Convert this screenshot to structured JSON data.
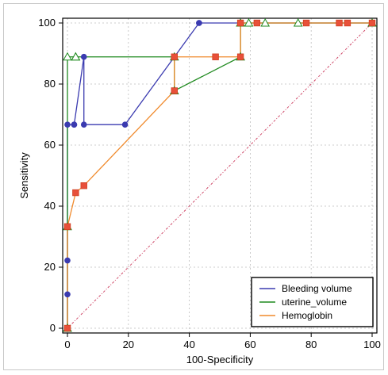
{
  "chart_data": {
    "type": "line",
    "xlabel": "100-Specificity",
    "ylabel": "Sensitivity",
    "xlim": [
      0,
      100
    ],
    "ylim": [
      0,
      100
    ],
    "xticks": [
      0,
      20,
      40,
      60,
      80,
      100
    ],
    "yticks": [
      0,
      20,
      40,
      60,
      80,
      100
    ],
    "grid": true,
    "legend_position": "bottom-right",
    "diagonal_reference": true,
    "series": [
      {
        "name": "Bleeding volume",
        "color": "#3b3bb0",
        "marker_color": "#3b3bb0",
        "x": [
          0,
          0,
          0,
          0,
          0,
          2.2,
          2.2,
          5.4,
          5.4,
          18.9,
          35.1,
          35.1,
          43.2,
          43.2,
          100
        ],
        "y": [
          0,
          11.1,
          22.2,
          33.3,
          66.7,
          66.7,
          66.7,
          88.9,
          66.7,
          66.7,
          88.9,
          88.9,
          100,
          100,
          100
        ]
      },
      {
        "name": "uterine_volume",
        "color": "#1f8a1f",
        "marker_color": "#ffffff",
        "x": [
          0,
          0,
          0,
          2.7,
          2.7,
          35.1,
          35.1,
          56.8,
          56.8,
          59.5,
          64.9,
          75.7,
          100
        ],
        "y": [
          0,
          33.3,
          88.9,
          88.9,
          88.9,
          88.9,
          77.8,
          88.9,
          100,
          100,
          100,
          100,
          100
        ]
      },
      {
        "name": "Hemoglobin",
        "color": "#f08a2c",
        "marker_color": "#e8503a",
        "x": [
          0,
          0,
          2.7,
          5.4,
          35.1,
          35.1,
          48.6,
          56.8,
          56.8,
          62.2,
          78.4,
          89.2,
          91.9,
          100
        ],
        "y": [
          0,
          33.3,
          44.4,
          46.7,
          77.8,
          88.9,
          88.9,
          88.9,
          100,
          100,
          100,
          100,
          100,
          100
        ]
      }
    ]
  }
}
